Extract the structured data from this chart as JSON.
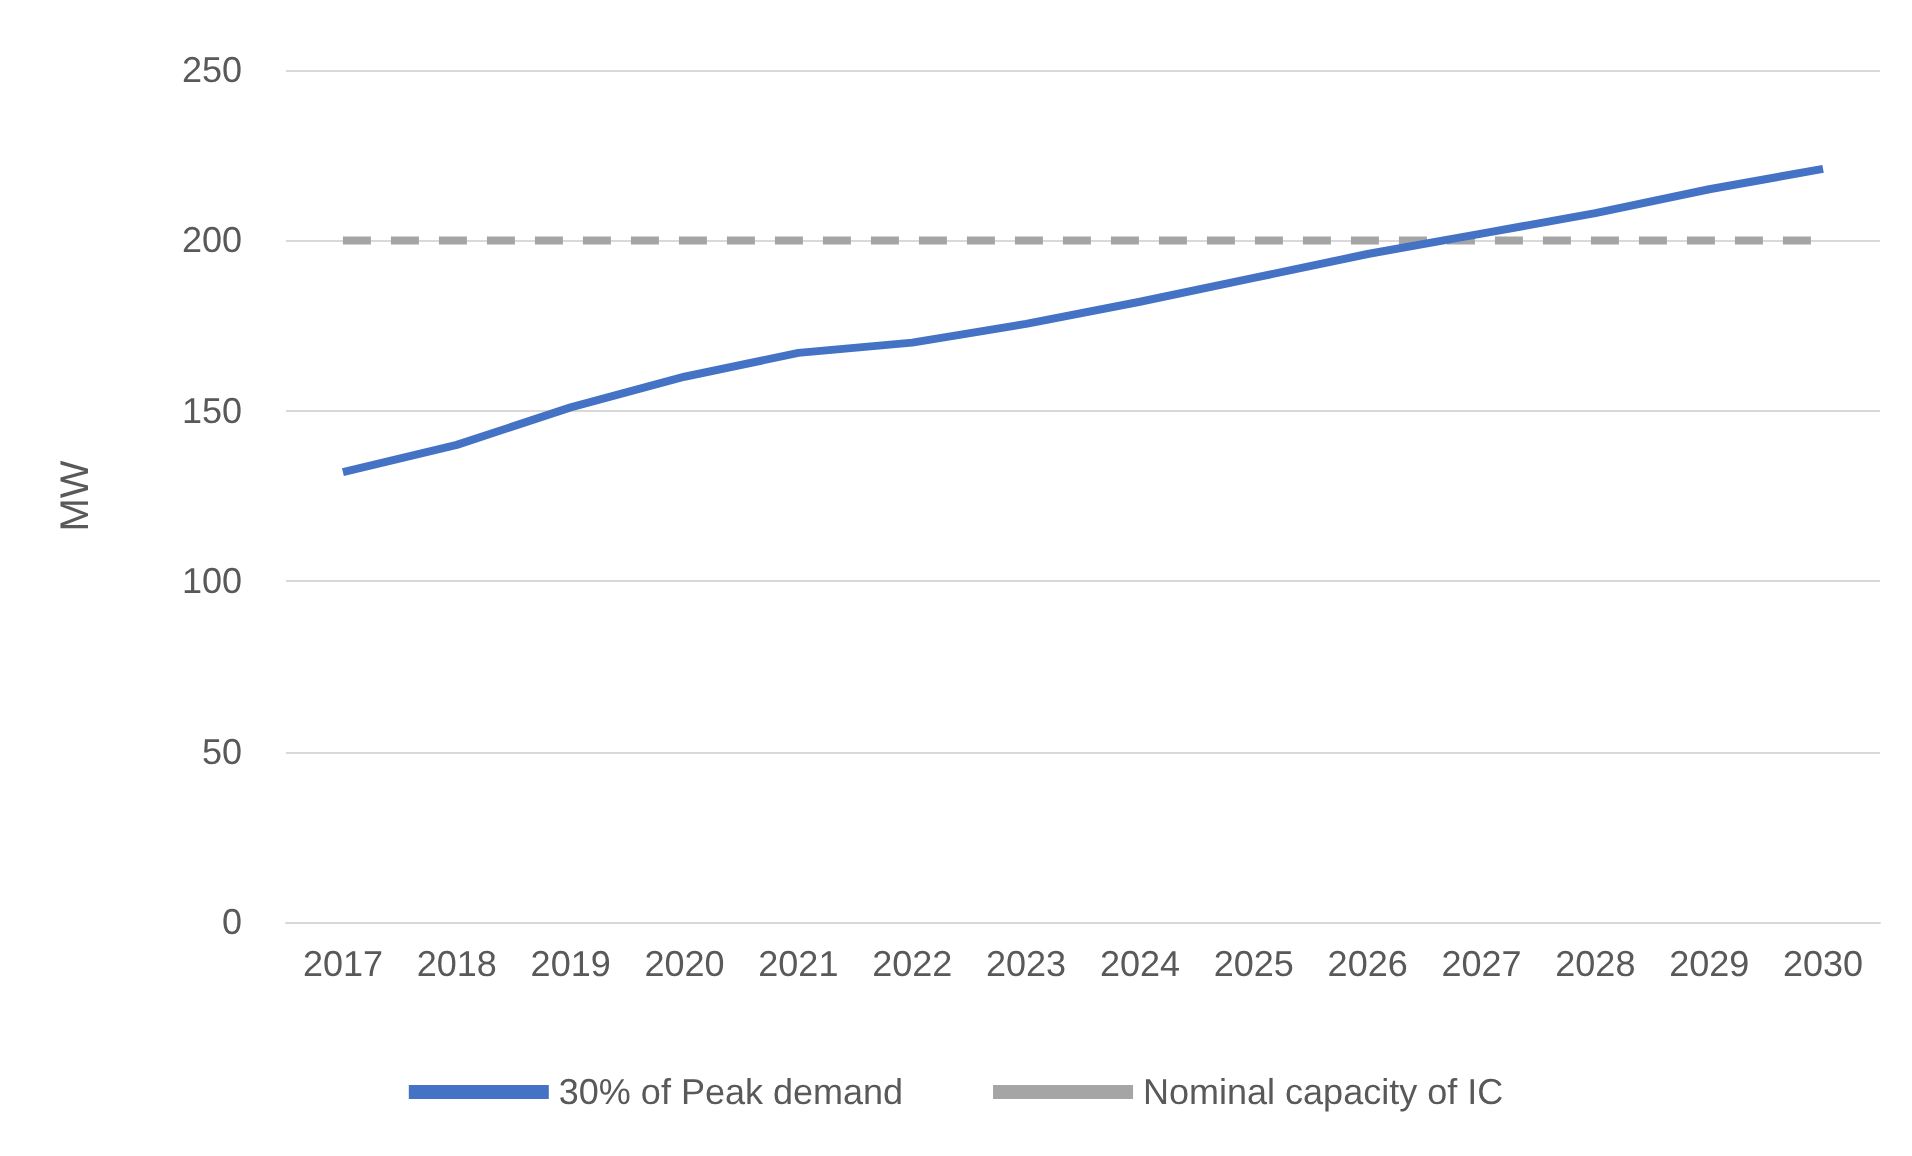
{
  "chart_data": {
    "type": "line",
    "ylabel": "MW",
    "categories": [
      "2017",
      "2018",
      "2019",
      "2020",
      "2021",
      "2022",
      "2023",
      "2024",
      "2025",
      "2026",
      "2027",
      "2028",
      "2029",
      "2030"
    ],
    "series": [
      {
        "name": "30% of Peak demand",
        "color": "#4472c4",
        "line_style": "solid",
        "values": [
          132,
          140,
          151,
          160,
          167,
          170,
          175.5,
          182,
          189,
          196,
          202,
          208,
          215,
          221
        ]
      },
      {
        "name": "Nominal capacity of IC",
        "color": "#a5a5a5",
        "line_style": "dashed",
        "values": [
          200,
          200,
          200,
          200,
          200,
          200,
          200,
          200,
          200,
          200,
          200,
          200,
          200,
          200
        ]
      }
    ],
    "ylim": [
      0,
      250
    ],
    "yticks": [
      0,
      50,
      100,
      150,
      200,
      250
    ],
    "grid": "y",
    "legend": "bottom",
    "marker": "none"
  }
}
